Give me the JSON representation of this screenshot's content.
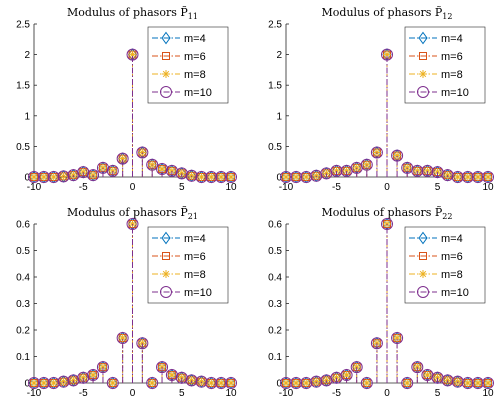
{
  "colors": {
    "m4": "#0072BD",
    "m6": "#D95319",
    "m8": "#EDB120",
    "m10": "#7E2F8E"
  },
  "chart_data": [
    {
      "type": "stem",
      "title": "Modulus of phasors P̃",
      "title_sub": "11",
      "xlim": [
        -10,
        10
      ],
      "ylim": [
        0,
        2.5
      ],
      "xticks": [
        "-10",
        "-5",
        "0",
        "5",
        "10"
      ],
      "yticks": [
        "0",
        "0.5",
        "1",
        "1.5",
        "2",
        "2.5"
      ],
      "legend": [
        "m=4",
        "m=6",
        "m=8",
        "m=10"
      ],
      "x": [
        -10,
        -9,
        -8,
        -7,
        -6,
        -5,
        -4,
        -3,
        -2,
        -1,
        0,
        1,
        2,
        3,
        4,
        5,
        6,
        7,
        8,
        9,
        10
      ],
      "series": [
        {
          "name": "m=4",
          "values": [
            0,
            0,
            0,
            0.01,
            0.03,
            0.08,
            0.03,
            0.15,
            0.1,
            0.3,
            2.0,
            0.4,
            0.2,
            0.13,
            0.1,
            0.06,
            0.02,
            0,
            0,
            0,
            0
          ]
        },
        {
          "name": "m=6",
          "values": [
            0,
            0,
            0,
            0.01,
            0.03,
            0.08,
            0.03,
            0.15,
            0.1,
            0.3,
            2.0,
            0.4,
            0.2,
            0.13,
            0.1,
            0.06,
            0.02,
            0,
            0,
            0,
            0
          ]
        },
        {
          "name": "m=8",
          "values": [
            0,
            0,
            0,
            0.01,
            0.03,
            0.08,
            0.03,
            0.15,
            0.1,
            0.3,
            2.0,
            0.4,
            0.2,
            0.13,
            0.1,
            0.06,
            0.02,
            0,
            0,
            0,
            0
          ]
        },
        {
          "name": "m=10",
          "values": [
            0,
            0,
            0,
            0.01,
            0.03,
            0.08,
            0.03,
            0.15,
            0.1,
            0.3,
            2.0,
            0.4,
            0.2,
            0.13,
            0.1,
            0.06,
            0.02,
            0,
            0,
            0,
            0
          ]
        }
      ]
    },
    {
      "type": "stem",
      "title": "Modulus of phasors P̃",
      "title_sub": "12",
      "xlim": [
        -10,
        10
      ],
      "ylim": [
        0,
        2.5
      ],
      "xticks": [
        "-10",
        "-5",
        "0",
        "5",
        "10"
      ],
      "yticks": [
        "0",
        "0.5",
        "1",
        "1.5",
        "2",
        "2.5"
      ],
      "legend": [
        "m=4",
        "m=6",
        "m=8",
        "m=10"
      ],
      "x": [
        -10,
        -9,
        -8,
        -7,
        -6,
        -5,
        -4,
        -3,
        -2,
        -1,
        0,
        1,
        2,
        3,
        4,
        5,
        6,
        7,
        8,
        9,
        10
      ],
      "series": [
        {
          "name": "m=4",
          "values": [
            0,
            0,
            0,
            0.02,
            0.06,
            0.1,
            0.1,
            0.15,
            0.2,
            0.4,
            2.0,
            0.35,
            0.15,
            0.1,
            0.1,
            0.08,
            0.03,
            0,
            0,
            0,
            0
          ]
        },
        {
          "name": "m=6",
          "values": [
            0,
            0,
            0,
            0.02,
            0.06,
            0.1,
            0.1,
            0.15,
            0.2,
            0.4,
            2.0,
            0.35,
            0.15,
            0.1,
            0.1,
            0.08,
            0.03,
            0,
            0,
            0,
            0
          ]
        },
        {
          "name": "m=8",
          "values": [
            0,
            0,
            0,
            0.02,
            0.06,
            0.1,
            0.1,
            0.15,
            0.2,
            0.4,
            2.0,
            0.35,
            0.15,
            0.1,
            0.1,
            0.08,
            0.03,
            0,
            0,
            0,
            0
          ]
        },
        {
          "name": "m=10",
          "values": [
            0,
            0,
            0,
            0.02,
            0.06,
            0.1,
            0.1,
            0.15,
            0.2,
            0.4,
            2.0,
            0.35,
            0.15,
            0.1,
            0.1,
            0.08,
            0.03,
            0,
            0,
            0,
            0
          ]
        }
      ]
    },
    {
      "type": "stem",
      "title": "Modulus of phasors P̃",
      "title_sub": "21",
      "xlim": [
        -10,
        10
      ],
      "ylim": [
        0,
        0.6
      ],
      "xticks": [
        "-10",
        "-5",
        "0",
        "5",
        "10"
      ],
      "yticks": [
        "0",
        "0.1",
        "0.2",
        "0.3",
        "0.4",
        "0.5",
        "0.6"
      ],
      "legend": [
        "m=4",
        "m=6",
        "m=8",
        "m=10"
      ],
      "x": [
        -10,
        -9,
        -8,
        -7,
        -6,
        -5,
        -4,
        -3,
        -2,
        -1,
        0,
        1,
        2,
        3,
        4,
        5,
        6,
        7,
        8,
        9,
        10
      ],
      "series": [
        {
          "name": "m=4",
          "values": [
            0,
            0,
            0,
            0.005,
            0.01,
            0.02,
            0.03,
            0.06,
            0,
            0.17,
            0.6,
            0.15,
            0,
            0.06,
            0.03,
            0.02,
            0.01,
            0.005,
            0,
            0,
            0
          ]
        },
        {
          "name": "m=6",
          "values": [
            0,
            0,
            0,
            0.005,
            0.01,
            0.02,
            0.03,
            0.06,
            0,
            0.17,
            0.6,
            0.15,
            0,
            0.06,
            0.03,
            0.02,
            0.01,
            0.005,
            0,
            0,
            0
          ]
        },
        {
          "name": "m=8",
          "values": [
            0,
            0,
            0,
            0.005,
            0.01,
            0.02,
            0.03,
            0.06,
            0,
            0.17,
            0.6,
            0.15,
            0,
            0.06,
            0.03,
            0.02,
            0.01,
            0.005,
            0,
            0,
            0
          ]
        },
        {
          "name": "m=10",
          "values": [
            0,
            0,
            0,
            0.005,
            0.01,
            0.02,
            0.03,
            0.06,
            0,
            0.17,
            0.6,
            0.15,
            0,
            0.06,
            0.03,
            0.02,
            0.01,
            0.005,
            0,
            0,
            0
          ]
        }
      ]
    },
    {
      "type": "stem",
      "title": "Modulus of phasors P̃",
      "title_sub": "22",
      "xlim": [
        -10,
        10
      ],
      "ylim": [
        0,
        0.6
      ],
      "xticks": [
        "-10",
        "-5",
        "0",
        "5",
        "10"
      ],
      "yticks": [
        "0",
        "0.1",
        "0.2",
        "0.3",
        "0.4",
        "0.5",
        "0.6"
      ],
      "legend": [
        "m=4",
        "m=6",
        "m=8",
        "m=10"
      ],
      "x": [
        -10,
        -9,
        -8,
        -7,
        -6,
        -5,
        -4,
        -3,
        -2,
        -1,
        0,
        1,
        2,
        3,
        4,
        5,
        6,
        7,
        8,
        9,
        10
      ],
      "series": [
        {
          "name": "m=4",
          "values": [
            0,
            0,
            0,
            0.005,
            0.01,
            0.02,
            0.03,
            0.06,
            0,
            0.15,
            0.6,
            0.17,
            0,
            0.06,
            0.03,
            0.02,
            0.01,
            0.005,
            0,
            0,
            0
          ]
        },
        {
          "name": "m=6",
          "values": [
            0,
            0,
            0,
            0.005,
            0.01,
            0.02,
            0.03,
            0.06,
            0,
            0.15,
            0.6,
            0.17,
            0,
            0.06,
            0.03,
            0.02,
            0.01,
            0.005,
            0,
            0,
            0
          ]
        },
        {
          "name": "m=8",
          "values": [
            0,
            0,
            0,
            0.005,
            0.01,
            0.02,
            0.03,
            0.06,
            0,
            0.15,
            0.6,
            0.17,
            0,
            0.06,
            0.03,
            0.02,
            0.01,
            0.005,
            0,
            0,
            0
          ]
        },
        {
          "name": "m=10",
          "values": [
            0,
            0,
            0,
            0.005,
            0.01,
            0.02,
            0.03,
            0.06,
            0,
            0.15,
            0.6,
            0.17,
            0,
            0.06,
            0.03,
            0.02,
            0.01,
            0.005,
            0,
            0,
            0
          ]
        }
      ]
    }
  ]
}
